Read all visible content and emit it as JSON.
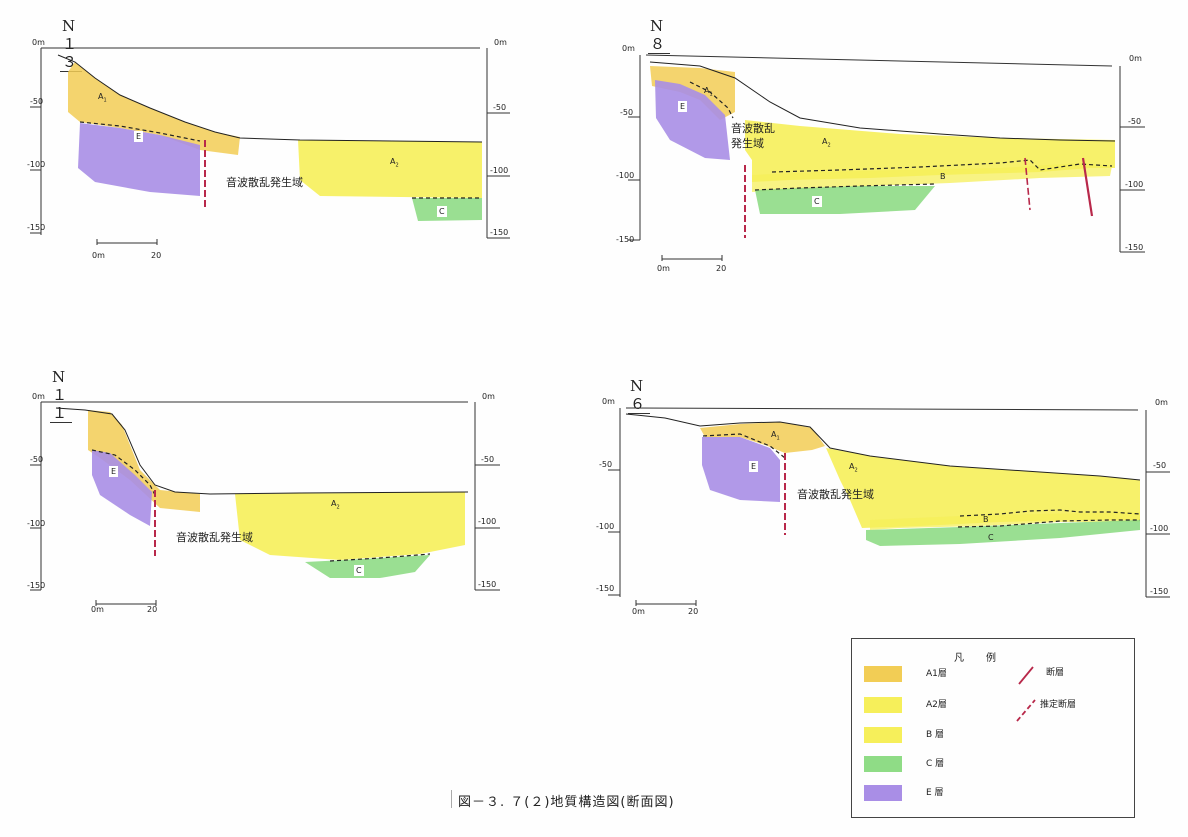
{
  "panels": {
    "n13": {
      "title": "N１３",
      "axis_left": [
        "0m",
        "-50",
        "-100",
        "-150"
      ],
      "axis_right": [
        "0m",
        "-50",
        "-100",
        "-150"
      ],
      "scale": [
        "0m",
        "20"
      ],
      "labels": {
        "a1": "A",
        "a1_sub": "1",
        "e": "E",
        "a2": "A",
        "a2_sub": "2",
        "c": "C"
      },
      "zone_text": "音波散乱発生域"
    },
    "n8": {
      "title": "N８",
      "axis_left": [
        "0m",
        "-50",
        "-100",
        "-150"
      ],
      "axis_right": [
        "0m",
        "-50",
        "-100",
        "-150"
      ],
      "scale": [
        "0m",
        "20"
      ],
      "labels": {
        "a1": "A",
        "a1_sub": "1",
        "e": "E",
        "a2": "A",
        "a2_sub": "2",
        "b": "B",
        "c": "C"
      },
      "zone_text_line1": "音波散乱",
      "zone_text_line2": "発生域"
    },
    "n11": {
      "title": "N１１",
      "axis_left": [
        "0m",
        "-50",
        "-100",
        "-150"
      ],
      "axis_right": [
        "0m",
        "-50",
        "-100",
        "-150"
      ],
      "scale": [
        "0m",
        "20"
      ],
      "labels": {
        "e": "E",
        "a2": "A",
        "a2_sub": "2",
        "c": "C"
      },
      "zone_text": "音波散乱発生域"
    },
    "n6": {
      "title": "N６",
      "axis_left": [
        "0m",
        "-50",
        "-100",
        "-150"
      ],
      "axis_right": [
        "0m",
        "-50",
        "-100",
        "-150"
      ],
      "scale": [
        "0m",
        "20"
      ],
      "labels": {
        "a1": "A",
        "a1_sub": "1",
        "e": "E",
        "a2": "A",
        "a2_sub": "2",
        "b": "B",
        "c": "C"
      },
      "zone_text": "音波散乱発生域"
    }
  },
  "legend": {
    "title": "凡　例",
    "layers": [
      {
        "label": "A1層",
        "color": "#f2cd55"
      },
      {
        "label": "A2層",
        "color": "#f6ef5a"
      },
      {
        "label": "B 層",
        "color": "#f6ef5a"
      },
      {
        "label": "C 層",
        "color": "#8fdc86"
      },
      {
        "label": "E 層",
        "color": "#a98ee6"
      }
    ],
    "fault_label": "断層",
    "inferred_fault_label": "推定断層",
    "fault_color": "#b8284a"
  },
  "caption": "図－３. ７(２)地質構造図(断面図)"
}
